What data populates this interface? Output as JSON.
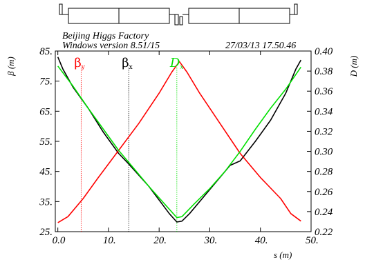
{
  "header": {
    "program": "Beijing Higgs Factory",
    "version": "Windows version 8.51/15",
    "timestamp": "27/03/13  17.50.46"
  },
  "chart_data": {
    "type": "line",
    "xlabel": "s (m)",
    "ylabel_left": "β  (m)",
    "ylabel_right": "D  (m)",
    "xlim": [
      -0.5,
      50
    ],
    "ylim_left": [
      25,
      85
    ],
    "ylim_right": [
      0.22,
      0.4
    ],
    "x_ticks": [
      "0.0",
      "10.",
      "20.",
      "30.",
      "40.",
      "50."
    ],
    "x_tick_values": [
      0,
      10,
      20,
      30,
      40,
      50
    ],
    "y_left_ticks": [
      "25.",
      "35.",
      "45.",
      "55.",
      "65.",
      "75.",
      "85."
    ],
    "y_left_tick_values": [
      25,
      35,
      45,
      55,
      65,
      75,
      85
    ],
    "y_right_ticks": [
      "0.22",
      "0.24",
      "0.26",
      "0.28",
      "0.30",
      "0.32",
      "0.34",
      "0.36",
      "0.38",
      "0.40"
    ],
    "y_right_tick_values": [
      0.22,
      0.24,
      0.26,
      0.28,
      0.3,
      0.32,
      0.34,
      0.36,
      0.38,
      0.4
    ],
    "series": [
      {
        "name": "βx",
        "label_main": "β",
        "label_sub": "x",
        "axis": "left",
        "color": "#000000",
        "x": [
          0,
          1,
          3,
          6,
          9,
          12,
          14,
          18,
          22,
          23.5,
          24.5,
          26,
          30,
          34,
          36,
          39,
          42,
          45,
          47,
          48
        ],
        "y": [
          83,
          79,
          73,
          66,
          58,
          51,
          47.5,
          40,
          31,
          28.2,
          28.5,
          31,
          39,
          47,
          48.5,
          55,
          62,
          71,
          79,
          82
        ]
      },
      {
        "name": "βy",
        "label_main": "β",
        "label_sub": "y",
        "axis": "left",
        "color": "#ff0000",
        "x": [
          0,
          2,
          5,
          8,
          12,
          16,
          20,
          22.5,
          24,
          25.5,
          28,
          32,
          36,
          40,
          44,
          46,
          48
        ],
        "y": [
          28,
          30,
          36,
          43,
          52,
          61,
          71,
          78,
          81.5,
          78,
          71,
          61,
          51,
          43,
          36,
          31,
          28.5
        ]
      },
      {
        "name": "Dx",
        "label_main": "D",
        "label_sub": "x",
        "axis": "right",
        "color": "#00e000",
        "x": [
          0,
          3,
          6,
          9,
          12,
          15,
          18,
          21,
          23.5,
          24.5,
          27,
          30,
          33,
          36,
          39,
          42,
          45,
          48
        ],
        "y": [
          0.385,
          0.365,
          0.343,
          0.322,
          0.301,
          0.283,
          0.265,
          0.248,
          0.234,
          0.235,
          0.248,
          0.263,
          0.28,
          0.3,
          0.322,
          0.343,
          0.362,
          0.384
        ]
      }
    ],
    "markers": [
      {
        "series": "βy",
        "x": 4.6,
        "color": "#ff0000"
      },
      {
        "series": "βx",
        "x": 14.0,
        "color": "#000000"
      },
      {
        "series": "Dx",
        "x": 23.5,
        "color": "#00e000"
      }
    ],
    "grid": false,
    "legend": "top"
  }
}
